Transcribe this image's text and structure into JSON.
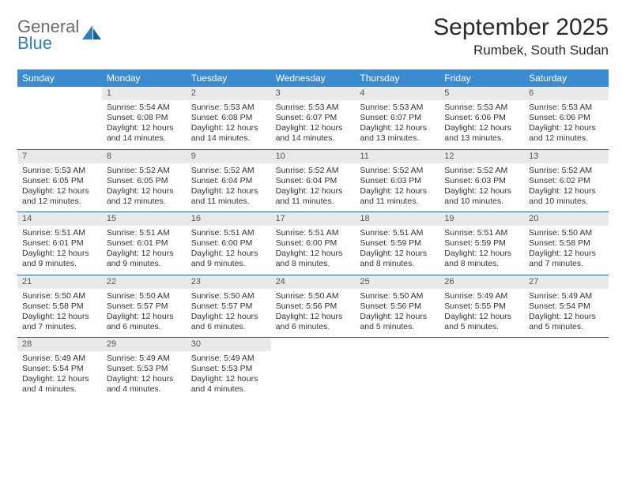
{
  "brand": {
    "word1": "General",
    "word2": "Blue"
  },
  "title": "September 2025",
  "location": "Rumbek, South Sudan",
  "colors": {
    "header_bg": "#3b8bd0",
    "header_text": "#ffffff",
    "daynum_bg": "#e9e9e9",
    "daynum_text": "#555555",
    "week_divider": "#2c6aa3",
    "body_text": "#333333",
    "logo_gray": "#6b6b6b",
    "logo_blue": "#2f7fc2"
  },
  "dow": [
    "Sunday",
    "Monday",
    "Tuesday",
    "Wednesday",
    "Thursday",
    "Friday",
    "Saturday"
  ],
  "weeks": [
    [
      {
        "n": "",
        "sr": "",
        "ss": "",
        "dl": ""
      },
      {
        "n": "1",
        "sr": "Sunrise: 5:54 AM",
        "ss": "Sunset: 6:08 PM",
        "dl": "Daylight: 12 hours and 14 minutes."
      },
      {
        "n": "2",
        "sr": "Sunrise: 5:53 AM",
        "ss": "Sunset: 6:08 PM",
        "dl": "Daylight: 12 hours and 14 minutes."
      },
      {
        "n": "3",
        "sr": "Sunrise: 5:53 AM",
        "ss": "Sunset: 6:07 PM",
        "dl": "Daylight: 12 hours and 14 minutes."
      },
      {
        "n": "4",
        "sr": "Sunrise: 5:53 AM",
        "ss": "Sunset: 6:07 PM",
        "dl": "Daylight: 12 hours and 13 minutes."
      },
      {
        "n": "5",
        "sr": "Sunrise: 5:53 AM",
        "ss": "Sunset: 6:06 PM",
        "dl": "Daylight: 12 hours and 13 minutes."
      },
      {
        "n": "6",
        "sr": "Sunrise: 5:53 AM",
        "ss": "Sunset: 6:06 PM",
        "dl": "Daylight: 12 hours and 12 minutes."
      }
    ],
    [
      {
        "n": "7",
        "sr": "Sunrise: 5:53 AM",
        "ss": "Sunset: 6:05 PM",
        "dl": "Daylight: 12 hours and 12 minutes."
      },
      {
        "n": "8",
        "sr": "Sunrise: 5:52 AM",
        "ss": "Sunset: 6:05 PM",
        "dl": "Daylight: 12 hours and 12 minutes."
      },
      {
        "n": "9",
        "sr": "Sunrise: 5:52 AM",
        "ss": "Sunset: 6:04 PM",
        "dl": "Daylight: 12 hours and 11 minutes."
      },
      {
        "n": "10",
        "sr": "Sunrise: 5:52 AM",
        "ss": "Sunset: 6:04 PM",
        "dl": "Daylight: 12 hours and 11 minutes."
      },
      {
        "n": "11",
        "sr": "Sunrise: 5:52 AM",
        "ss": "Sunset: 6:03 PM",
        "dl": "Daylight: 12 hours and 11 minutes."
      },
      {
        "n": "12",
        "sr": "Sunrise: 5:52 AM",
        "ss": "Sunset: 6:03 PM",
        "dl": "Daylight: 12 hours and 10 minutes."
      },
      {
        "n": "13",
        "sr": "Sunrise: 5:52 AM",
        "ss": "Sunset: 6:02 PM",
        "dl": "Daylight: 12 hours and 10 minutes."
      }
    ],
    [
      {
        "n": "14",
        "sr": "Sunrise: 5:51 AM",
        "ss": "Sunset: 6:01 PM",
        "dl": "Daylight: 12 hours and 9 minutes."
      },
      {
        "n": "15",
        "sr": "Sunrise: 5:51 AM",
        "ss": "Sunset: 6:01 PM",
        "dl": "Daylight: 12 hours and 9 minutes."
      },
      {
        "n": "16",
        "sr": "Sunrise: 5:51 AM",
        "ss": "Sunset: 6:00 PM",
        "dl": "Daylight: 12 hours and 9 minutes."
      },
      {
        "n": "17",
        "sr": "Sunrise: 5:51 AM",
        "ss": "Sunset: 6:00 PM",
        "dl": "Daylight: 12 hours and 8 minutes."
      },
      {
        "n": "18",
        "sr": "Sunrise: 5:51 AM",
        "ss": "Sunset: 5:59 PM",
        "dl": "Daylight: 12 hours and 8 minutes."
      },
      {
        "n": "19",
        "sr": "Sunrise: 5:51 AM",
        "ss": "Sunset: 5:59 PM",
        "dl": "Daylight: 12 hours and 8 minutes."
      },
      {
        "n": "20",
        "sr": "Sunrise: 5:50 AM",
        "ss": "Sunset: 5:58 PM",
        "dl": "Daylight: 12 hours and 7 minutes."
      }
    ],
    [
      {
        "n": "21",
        "sr": "Sunrise: 5:50 AM",
        "ss": "Sunset: 5:58 PM",
        "dl": "Daylight: 12 hours and 7 minutes."
      },
      {
        "n": "22",
        "sr": "Sunrise: 5:50 AM",
        "ss": "Sunset: 5:57 PM",
        "dl": "Daylight: 12 hours and 6 minutes."
      },
      {
        "n": "23",
        "sr": "Sunrise: 5:50 AM",
        "ss": "Sunset: 5:57 PM",
        "dl": "Daylight: 12 hours and 6 minutes."
      },
      {
        "n": "24",
        "sr": "Sunrise: 5:50 AM",
        "ss": "Sunset: 5:56 PM",
        "dl": "Daylight: 12 hours and 6 minutes."
      },
      {
        "n": "25",
        "sr": "Sunrise: 5:50 AM",
        "ss": "Sunset: 5:56 PM",
        "dl": "Daylight: 12 hours and 5 minutes."
      },
      {
        "n": "26",
        "sr": "Sunrise: 5:49 AM",
        "ss": "Sunset: 5:55 PM",
        "dl": "Daylight: 12 hours and 5 minutes."
      },
      {
        "n": "27",
        "sr": "Sunrise: 5:49 AM",
        "ss": "Sunset: 5:54 PM",
        "dl": "Daylight: 12 hours and 5 minutes."
      }
    ],
    [
      {
        "n": "28",
        "sr": "Sunrise: 5:49 AM",
        "ss": "Sunset: 5:54 PM",
        "dl": "Daylight: 12 hours and 4 minutes."
      },
      {
        "n": "29",
        "sr": "Sunrise: 5:49 AM",
        "ss": "Sunset: 5:53 PM",
        "dl": "Daylight: 12 hours and 4 minutes."
      },
      {
        "n": "30",
        "sr": "Sunrise: 5:49 AM",
        "ss": "Sunset: 5:53 PM",
        "dl": "Daylight: 12 hours and 4 minutes."
      },
      {
        "n": "",
        "sr": "",
        "ss": "",
        "dl": ""
      },
      {
        "n": "",
        "sr": "",
        "ss": "",
        "dl": ""
      },
      {
        "n": "",
        "sr": "",
        "ss": "",
        "dl": ""
      },
      {
        "n": "",
        "sr": "",
        "ss": "",
        "dl": ""
      }
    ]
  ]
}
